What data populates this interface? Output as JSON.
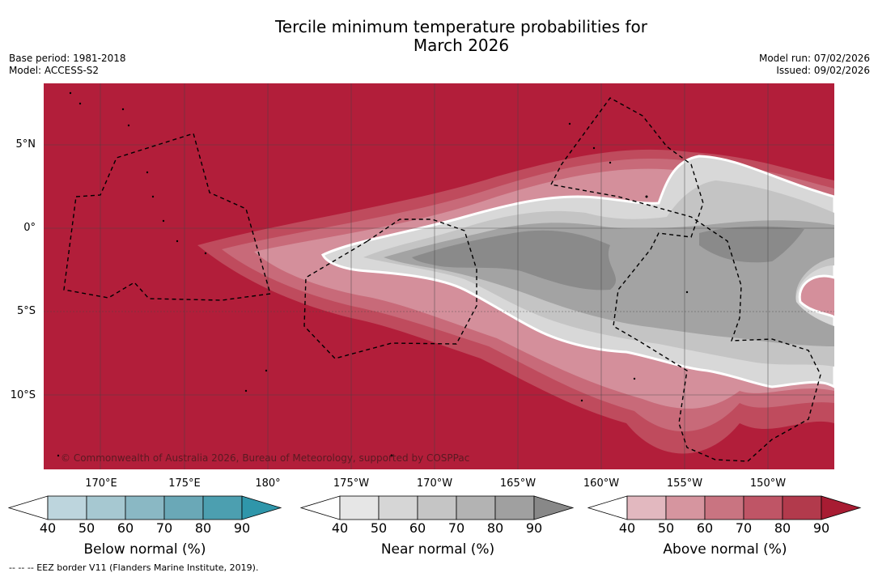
{
  "title_line1": "Tercile minimum temperature probabilities for",
  "title_line2": "March 2026",
  "base_period": "Base period: 1981-2018",
  "model": "Model: ACCESS-S2",
  "model_run": "Model run: 07/02/2026",
  "issued": "Issued: 09/02/2026",
  "lat_labels": [
    "5°N",
    "0°",
    "5°S",
    "10°S"
  ],
  "lon_labels": [
    "170°E",
    "175°E",
    "180°",
    "175°W",
    "170°W",
    "165°W",
    "160°W",
    "155°W",
    "150°W"
  ],
  "copyright": "© Commonwealth of Australia 2026, Bureau of Meteorology, supported by COSPPac",
  "colorbars": [
    {
      "title": "Below normal (%)",
      "ticks": [
        "40",
        "50",
        "60",
        "70",
        "80",
        "90"
      ],
      "colors": [
        "#ffffff",
        "#bdd5dd",
        "#a6c8d1",
        "#8ab8c4",
        "#6aa8b7",
        "#4c9fb0",
        "#2f96aa"
      ]
    },
    {
      "title": "Near normal (%)",
      "ticks": [
        "40",
        "50",
        "60",
        "70",
        "80",
        "90"
      ],
      "colors": [
        "#ffffff",
        "#e6e6e6",
        "#d6d6d6",
        "#c5c5c5",
        "#b3b3b3",
        "#a0a0a0",
        "#888888"
      ]
    },
    {
      "title": "Above normal (%)",
      "ticks": [
        "40",
        "50",
        "60",
        "70",
        "80",
        "90"
      ],
      "colors": [
        "#ffffff",
        "#e2b8bf",
        "#d6959f",
        "#c97481",
        "#bf5566",
        "#b23a4c",
        "#a81c33"
      ]
    }
  ],
  "footnote": "--  --  -- EEZ border V11 (Flanders Marine Institute, 2019).",
  "colors": {
    "above_90": "#b21e3a",
    "near_outline": "#ffffff"
  }
}
